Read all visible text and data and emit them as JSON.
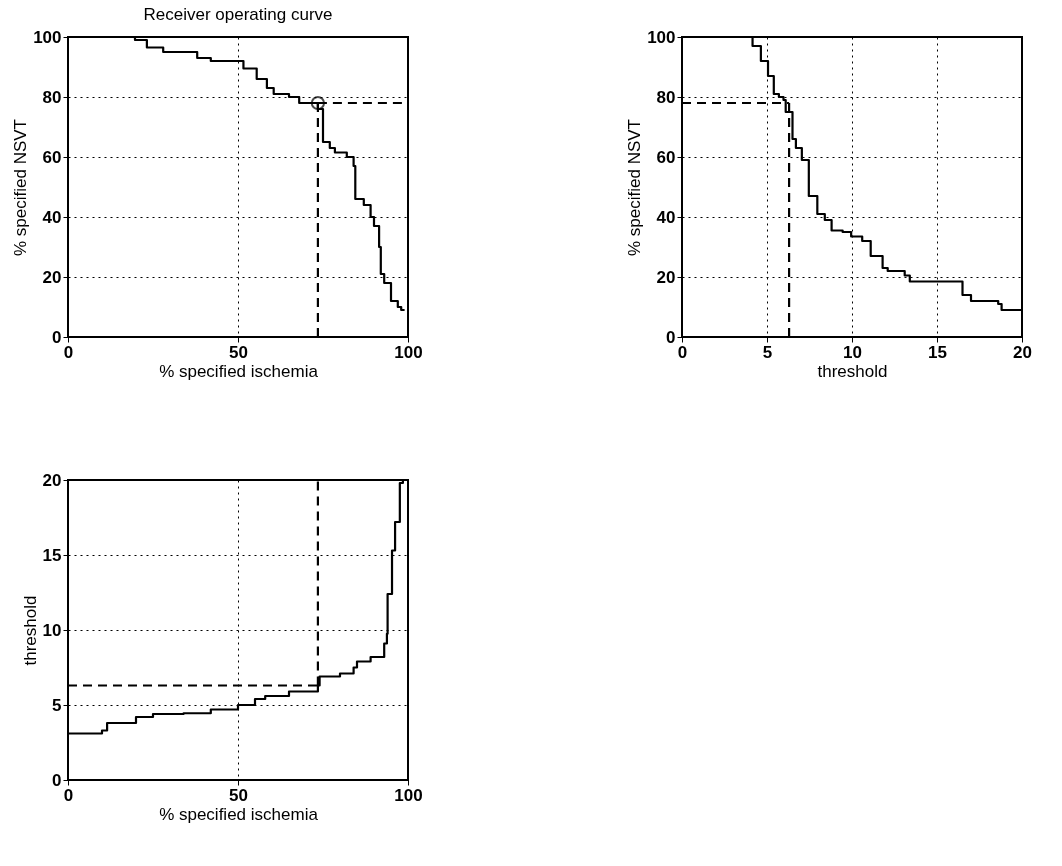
{
  "chart_data": [
    {
      "type": "step",
      "title": "Receiver operating curve",
      "xlabel": "% specified ischemia",
      "ylabel": "% specified NSVT",
      "xlim": [
        0,
        100
      ],
      "ylim": [
        0,
        100
      ],
      "xticks": [
        0,
        50,
        100
      ],
      "yticks": [
        0,
        20,
        40,
        60,
        80,
        100
      ],
      "grid": true,
      "series": [
        {
          "color": "#000000",
          "x": [
            0,
            19.7,
            23.2,
            28,
            38,
            42,
            51.6,
            55.5,
            58.5,
            60.5,
            65,
            68,
            73.5,
            75,
            77,
            78.5,
            82,
            84,
            84.5,
            87,
            89,
            90,
            91.5,
            92,
            93,
            95,
            97,
            98,
            99
          ],
          "values": [
            100,
            99,
            96.5,
            95,
            93,
            92,
            89.5,
            86,
            83,
            81,
            80,
            78,
            76,
            65,
            63,
            61.5,
            60,
            57,
            46,
            44,
            40,
            37,
            30,
            21,
            18,
            12,
            10,
            9,
            9
          ]
        },
        {
          "type": "line",
          "line_style": "dashed",
          "color": "#000000",
          "x": [
            73.5,
            100
          ],
          "values": [
            78,
            78
          ]
        },
        {
          "type": "line",
          "line_style": "dashed",
          "color": "#000000",
          "x": [
            73.5,
            73.5
          ],
          "values": [
            0,
            78
          ]
        },
        {
          "type": "scatter",
          "marker": "circle",
          "color": "#000000",
          "x": [
            73.5
          ],
          "values": [
            78
          ]
        }
      ]
    },
    {
      "type": "step",
      "xlabel": "threshold",
      "ylabel": "% specified NSVT",
      "xlim": [
        0,
        20
      ],
      "ylim": [
        0,
        100
      ],
      "xticks": [
        0,
        5,
        10,
        15,
        20
      ],
      "yticks": [
        0,
        20,
        40,
        60,
        80,
        100
      ],
      "grid": true,
      "series": [
        {
          "color": "#000000",
          "x": [
            4.0,
            4.15,
            4.64,
            5.06,
            5.4,
            5.7,
            5.97,
            6.1,
            6.5,
            6.7,
            7.05,
            7.46,
            7.96,
            8.4,
            8.8,
            9.45,
            9.95,
            10.6,
            11.1,
            11.8,
            12.1,
            13.1,
            13.4,
            16.25,
            16.5,
            17,
            18.6,
            18.8,
            20
          ],
          "values": [
            100,
            97,
            92,
            87,
            81,
            80,
            79,
            75,
            66,
            63,
            59,
            47,
            41,
            39,
            35.5,
            35,
            33.5,
            32,
            27,
            23,
            22,
            20.5,
            18.5,
            18.5,
            14,
            12,
            11,
            9,
            9
          ]
        },
        {
          "type": "line",
          "line_style": "dashed",
          "color": "#000000",
          "x": [
            0,
            6.3
          ],
          "values": [
            78,
            78
          ]
        },
        {
          "type": "line",
          "line_style": "dashed",
          "color": "#000000",
          "x": [
            6.3,
            6.3
          ],
          "values": [
            0,
            78
          ]
        }
      ]
    },
    {
      "type": "step",
      "xlabel": "% specified ischemia",
      "ylabel": "threshold",
      "xlim": [
        0,
        100
      ],
      "ylim": [
        0,
        20
      ],
      "xticks": [
        0,
        50,
        100
      ],
      "yticks": [
        0,
        5,
        10,
        15,
        20
      ],
      "grid": true,
      "series": [
        {
          "color": "#000000",
          "x": [
            0,
            10,
            11.5,
            20,
            25,
            34,
            42,
            50,
            55,
            58,
            65,
            73.5,
            74,
            80,
            84,
            85,
            89,
            93,
            93.8,
            94,
            95.3,
            96.2,
            97.6,
            98.5,
            100
          ],
          "values": [
            3.1,
            3.3,
            3.8,
            4.2,
            4.4,
            4.45,
            4.7,
            5.0,
            5.4,
            5.6,
            5.9,
            6.3,
            6.9,
            7.1,
            7.5,
            7.9,
            8.2,
            9.1,
            9.75,
            12.4,
            15.3,
            17.2,
            19.8,
            20,
            20
          ]
        },
        {
          "type": "line",
          "line_style": "dashed",
          "color": "#000000",
          "x": [
            0,
            73.5
          ],
          "values": [
            6.3,
            6.3
          ]
        },
        {
          "type": "line",
          "line_style": "dashed",
          "color": "#000000",
          "x": [
            73.5,
            73.5
          ],
          "values": [
            6.3,
            20
          ]
        }
      ]
    }
  ]
}
